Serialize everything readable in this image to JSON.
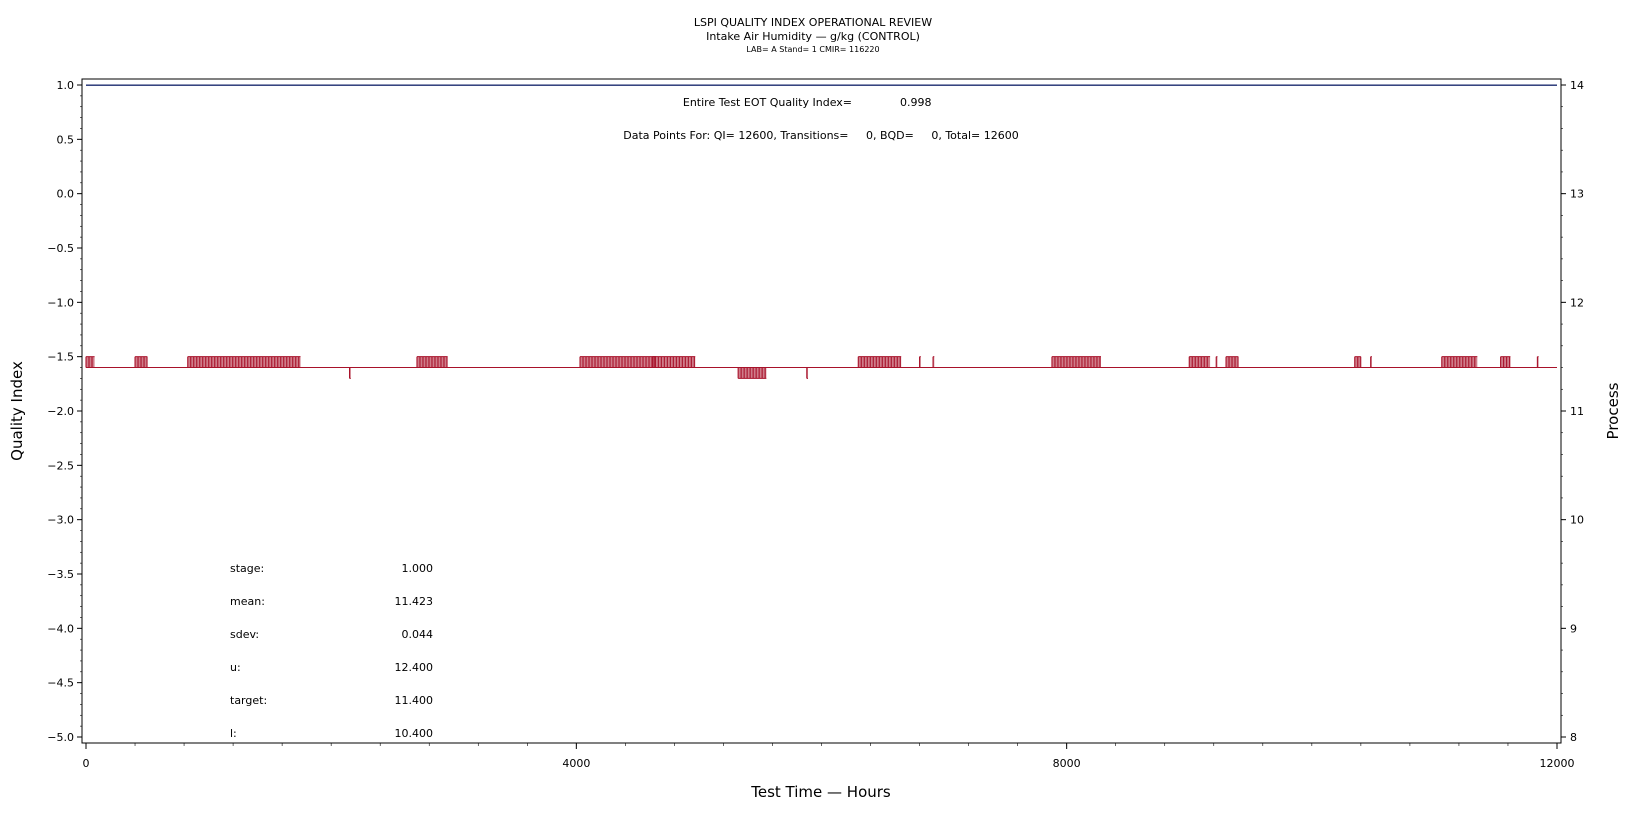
{
  "header": {
    "title": "LSPI QUALITY INDEX OPERATIONAL REVIEW",
    "subtitle": "Intake Air Humidity — g/kg (CONTROL)",
    "info": "LAB= A Stand= 1 CMIR= 116220"
  },
  "annotations": {
    "qi_label": "Entire Test EOT Quality Index=",
    "qi_value": "0.998",
    "points": "Data Points For: QI= 12600, Transitions=     0, BQD=     0, Total= 12600"
  },
  "stats": [
    {
      "label": "stage:",
      "value": "1.000"
    },
    {
      "label": "mean:",
      "value": "11.423"
    },
    {
      "label": "sdev:",
      "value": "0.044"
    },
    {
      "label": "u:",
      "value": "12.400"
    },
    {
      "label": "target:",
      "value": "11.400"
    },
    {
      "label": "l:",
      "value": "10.400"
    }
  ],
  "colors": {
    "process": "#a8122a",
    "quality_index": "#1a2a6e",
    "axis": "#000000"
  },
  "chart_data": {
    "type": "line",
    "xlabel": "Test Time — Hours",
    "ylabel": "Quality Index",
    "y2label": "Process",
    "xlim": [
      0,
      12000
    ],
    "ylim": [
      -5.0,
      1.0
    ],
    "y2lim": [
      8,
      14
    ],
    "x_ticks": [
      0,
      4000,
      8000,
      12000
    ],
    "y_ticks": [
      "1.0",
      "0.5",
      "0.0",
      "-0.5",
      "-1.0",
      "-1.5",
      "-2.0",
      "-2.5",
      "-3.0",
      "-3.5",
      "-4.0",
      "-4.5",
      "-5.0"
    ],
    "y2_ticks": [
      "14",
      "13",
      "12",
      "11",
      "10",
      "9",
      "8"
    ],
    "series": [
      {
        "name": "Quality Index",
        "axis": "left",
        "x": [
          0,
          12000
        ],
        "y": [
          0.998,
          0.998
        ]
      },
      {
        "name": "Process",
        "axis": "right",
        "baseline": 11.4,
        "excursions": [
          {
            "x_start": 0,
            "x_end": 70,
            "value": 11.5
          },
          {
            "x_start": 400,
            "x_end": 500,
            "value": 11.5
          },
          {
            "x_start": 830,
            "x_end": 1750,
            "value": 11.5
          },
          {
            "x_start": 2150,
            "x_end": 2160,
            "value": 11.3
          },
          {
            "x_start": 2700,
            "x_end": 2950,
            "value": 11.5
          },
          {
            "x_start": 4030,
            "x_end": 4650,
            "value": 11.5
          },
          {
            "x_start": 4620,
            "x_end": 4970,
            "value": 11.5
          },
          {
            "x_start": 5320,
            "x_end": 5550,
            "value": 11.3
          },
          {
            "x_start": 5880,
            "x_end": 5890,
            "value": 11.3
          },
          {
            "x_start": 6300,
            "x_end": 6650,
            "value": 11.5
          },
          {
            "x_start": 6800,
            "x_end": 6810,
            "value": 11.5
          },
          {
            "x_start": 6910,
            "x_end": 6920,
            "value": 11.5
          },
          {
            "x_start": 7880,
            "x_end": 8280,
            "value": 11.5
          },
          {
            "x_start": 9000,
            "x_end": 9170,
            "value": 11.5
          },
          {
            "x_start": 9220,
            "x_end": 9230,
            "value": 11.5
          },
          {
            "x_start": 9300,
            "x_end": 9400,
            "value": 11.5
          },
          {
            "x_start": 10350,
            "x_end": 10400,
            "value": 11.5
          },
          {
            "x_start": 10480,
            "x_end": 10490,
            "value": 11.5
          },
          {
            "x_start": 11060,
            "x_end": 11350,
            "value": 11.5
          },
          {
            "x_start": 11540,
            "x_end": 11620,
            "value": 11.5
          },
          {
            "x_start": 11840,
            "x_end": 11850,
            "value": 11.5
          }
        ]
      }
    ]
  }
}
